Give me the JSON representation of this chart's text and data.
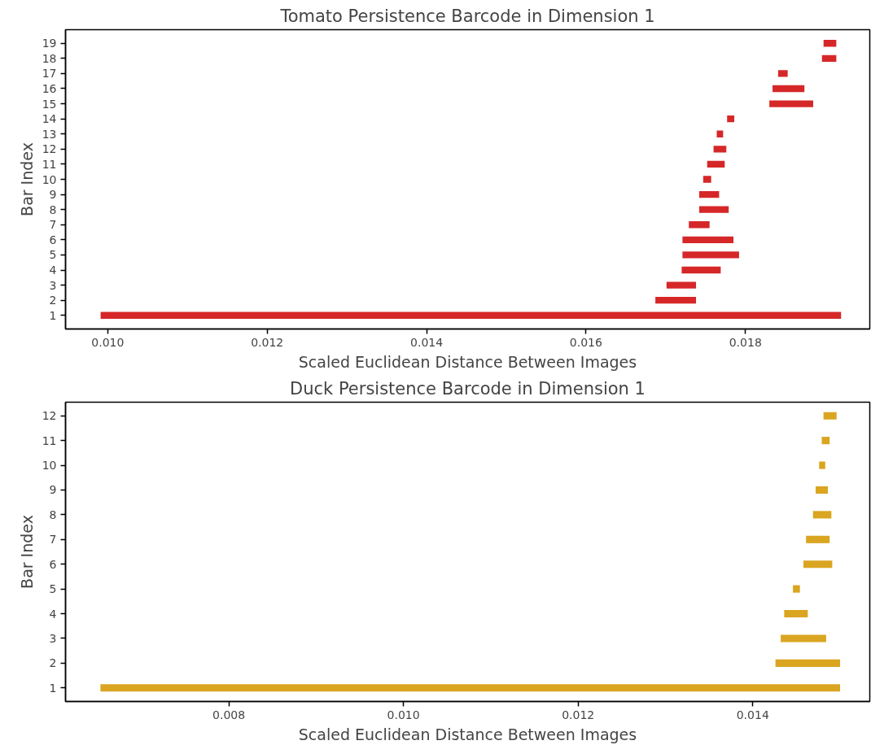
{
  "chart_data": [
    {
      "type": "bar",
      "orientation": "horizontal",
      "title": "Tomato Persistence Barcode in Dimension 1",
      "xlabel": "Scaled Euclidean Distance Between Images",
      "ylabel": "Bar Index",
      "categories": [
        "19",
        "18",
        "17",
        "16",
        "15",
        "14",
        "13",
        "12",
        "11",
        "10",
        "9",
        "8",
        "7",
        "6",
        "5",
        "4",
        "3",
        "2",
        "1"
      ],
      "base": [
        0.01898,
        0.01896,
        0.01841,
        0.01834,
        0.0183,
        0.01777,
        0.01764,
        0.0176,
        0.01752,
        0.01747,
        0.01742,
        0.01742,
        0.01729,
        0.01721,
        0.01721,
        0.0172,
        0.01701,
        0.01687,
        0.00991
      ],
      "values": [
        0.00016,
        0.00018,
        0.00012,
        0.0004,
        0.00055,
        9e-05,
        8e-05,
        0.00016,
        0.00022,
        0.0001,
        0.00025,
        0.00037,
        0.00026,
        0.00064,
        0.00071,
        0.00049,
        0.00037,
        0.00051,
        0.00929
      ],
      "color": "#d62728",
      "xlim": [
        0.00947,
        0.01956
      ],
      "xticks": [
        {
          "value": 0.01,
          "label": "0.010"
        },
        {
          "value": 0.012,
          "label": "0.012"
        },
        {
          "value": 0.014,
          "label": "0.014"
        },
        {
          "value": 0.016,
          "label": "0.016"
        },
        {
          "value": 0.018,
          "label": "0.018"
        }
      ],
      "grid": false
    },
    {
      "type": "bar",
      "orientation": "horizontal",
      "title": "Duck Persistence Barcode in Dimension 1",
      "xlabel": "Scaled Euclidean Distance Between Images",
      "ylabel": "Bar Index",
      "categories": [
        "12",
        "11",
        "10",
        "9",
        "8",
        "7",
        "6",
        "5",
        "4",
        "3",
        "2",
        "1"
      ],
      "base": [
        0.01481,
        0.01479,
        0.01476,
        0.01472,
        0.01469,
        0.01461,
        0.01458,
        0.01446,
        0.01436,
        0.01432,
        0.01426,
        0.00653
      ],
      "values": [
        0.00015,
        9e-05,
        7e-05,
        0.00014,
        0.00021,
        0.00027,
        0.00033,
        8e-05,
        0.00027,
        0.00052,
        0.00074,
        0.00847
      ],
      "color": "#daa520",
      "xlim": [
        0.00613,
        0.01534
      ],
      "xticks": [
        {
          "value": 0.008,
          "label": "0.008"
        },
        {
          "value": 0.01,
          "label": "0.010"
        },
        {
          "value": 0.012,
          "label": "0.012"
        },
        {
          "value": 0.014,
          "label": "0.014"
        }
      ],
      "grid": false
    }
  ]
}
